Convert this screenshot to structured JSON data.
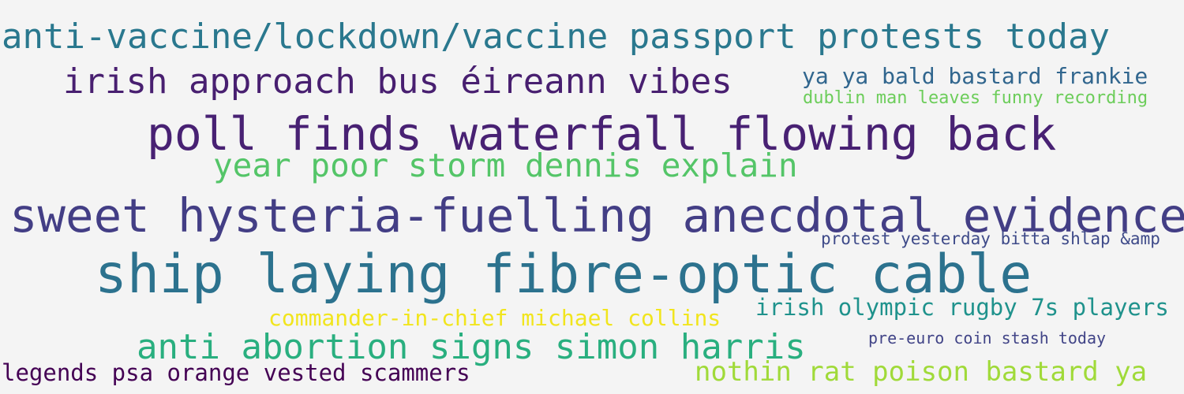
{
  "words": [
    {
      "text": "anti-vaccine/lockdown/vaccine passport protests today",
      "color": "#2a788e"
    },
    {
      "text": "irish approach bus éireann vibes",
      "color": "#481f70"
    },
    {
      "text": "ya ya bald bastard frankie",
      "color": "#31668e"
    },
    {
      "text": "dublin man leaves funny recording",
      "color": "#6ccd5a"
    },
    {
      "text": "poll finds waterfall flowing back",
      "color": "#482173"
    },
    {
      "text": "year poor storm dennis explain",
      "color": "#54c568"
    },
    {
      "text": "sweet hysteria-fuelling anecdotal evidence",
      "color": "#433e85"
    },
    {
      "text": "protest yesterday bitta shlap &amp",
      "color": "#3e4a89"
    },
    {
      "text": "ship laying fibre-optic cable",
      "color": "#2c728e"
    },
    {
      "text": "irish olympic rugby 7s players",
      "color": "#1f928c"
    },
    {
      "text": "commander-in-chief michael collins",
      "color": "#f1e51d"
    },
    {
      "text": "pre-euro coin stash today",
      "color": "#414487"
    },
    {
      "text": "anti abortion signs simon harris",
      "color": "#29af7f"
    },
    {
      "text": "legends psa orange vested scammers",
      "color": "#440154"
    },
    {
      "text": "nothin rat poison bastard ya",
      "color": "#a0da39"
    }
  ]
}
